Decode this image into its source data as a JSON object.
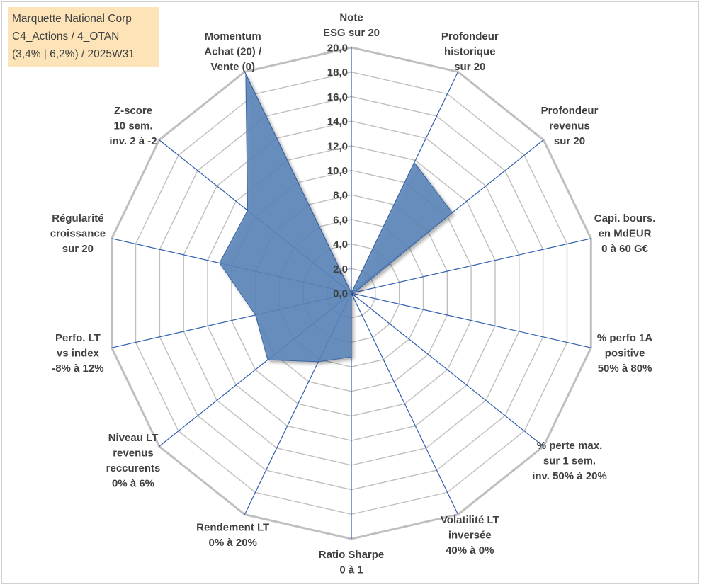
{
  "info_box": {
    "lines": [
      "Marquette National Corp",
      "C4_Actions / 4_OTAN",
      "(3,4% | 6,2%) / 2025W31"
    ]
  },
  "colors": {
    "grid": "#bfbfbf",
    "spoke": "#2f5fb0",
    "fill": "#5b84b8",
    "fill_stroke": "#3a63a0",
    "background_box": "#fde4b8"
  },
  "chart_data": {
    "type": "radar",
    "title": "",
    "scale": {
      "min": 0,
      "max": 20,
      "step": 2
    },
    "tick_labels": [
      "0,0",
      "2,0",
      "4,0",
      "6,0",
      "8,0",
      "10,0",
      "12,0",
      "14,0",
      "16,0",
      "18,0",
      "20,0"
    ],
    "grid": true,
    "axes": [
      {
        "label": [
          "Note",
          "ESG sur 20"
        ],
        "value": 0.0
      },
      {
        "label": [
          "Profondeur",
          "historique",
          "sur 20"
        ],
        "value": 11.8
      },
      {
        "label": [
          "Profondeur",
          "revenus",
          "sur 20"
        ],
        "value": 10.5
      },
      {
        "label": [
          "Capi. bours.",
          "en MdEUR",
          "0 à 60 G€"
        ],
        "value": 0.3
      },
      {
        "label": [
          "% perfo 1A",
          "positive",
          "50% à 80%"
        ],
        "value": 0.0
      },
      {
        "label": [
          "% perte max.",
          "sur 1 sem.",
          "inv. 50% à 20%"
        ],
        "value": 0.0
      },
      {
        "label": [
          "Volatilité LT",
          "inversée",
          "40% à 0%"
        ],
        "value": 0.0
      },
      {
        "label": [
          "Ratio Sharpe",
          "0 à 1"
        ],
        "value": 5.2
      },
      {
        "label": [
          "Rendement LT",
          "0% à 20%"
        ],
        "value": 6.2
      },
      {
        "label": [
          "Niveau LT",
          "revenus",
          "reccurents",
          "0% à 6%"
        ],
        "value": 8.7
      },
      {
        "label": [
          "Perfo. LT",
          "vs index",
          "-8% à 12%"
        ],
        "value": 8.0
      },
      {
        "label": [
          "Régularité",
          "croissance",
          "sur 20"
        ],
        "value": 11.0
      },
      {
        "label": [
          "Z-score",
          "10 sem.",
          "inv. 2 à -2"
        ],
        "value": 10.8
      },
      {
        "label": [
          "Momentum",
          "Achat (20) /",
          "Vente (0)"
        ],
        "value": 19.8
      }
    ]
  }
}
